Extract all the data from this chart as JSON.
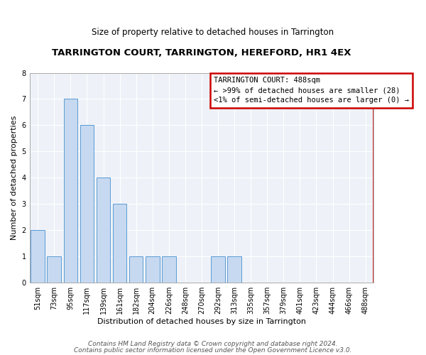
{
  "title": "TARRINGTON COURT, TARRINGTON, HEREFORD, HR1 4EX",
  "subtitle": "Size of property relative to detached houses in Tarrington",
  "xlabel": "Distribution of detached houses by size in Tarrington",
  "ylabel": "Number of detached properties",
  "categories": [
    "51sqm",
    "73sqm",
    "95sqm",
    "117sqm",
    "139sqm",
    "161sqm",
    "182sqm",
    "204sqm",
    "226sqm",
    "248sqm",
    "270sqm",
    "292sqm",
    "313sqm",
    "335sqm",
    "357sqm",
    "379sqm",
    "401sqm",
    "423sqm",
    "444sqm",
    "466sqm",
    "488sqm"
  ],
  "values": [
    2,
    1,
    7,
    6,
    4,
    3,
    1,
    1,
    1,
    0,
    0,
    1,
    1,
    0,
    0,
    0,
    0,
    0,
    0,
    0,
    0
  ],
  "bar_color": "#c6d9f0",
  "bar_edge_color": "#5b9bd5",
  "plot_bg_color": "#eef2f8",
  "ylim": [
    0,
    8
  ],
  "yticks": [
    0,
    1,
    2,
    3,
    4,
    5,
    6,
    7,
    8
  ],
  "annotation_title": "TARRINGTON COURT: 488sqm",
  "annotation_line1": "← >99% of detached houses are smaller (28)",
  "annotation_line2": "<1% of semi-detached houses are larger (0) →",
  "annotation_box_color": "#ffffff",
  "annotation_border_color": "#cc0000",
  "footer_line1": "Contains HM Land Registry data © Crown copyright and database right 2024.",
  "footer_line2": "Contains public sector information licensed under the Open Government Licence v3.0.",
  "title_fontsize": 9.5,
  "subtitle_fontsize": 8.5,
  "xlabel_fontsize": 8,
  "ylabel_fontsize": 8,
  "tick_fontsize": 7,
  "annotation_fontsize": 7.5,
  "footer_fontsize": 6.5
}
